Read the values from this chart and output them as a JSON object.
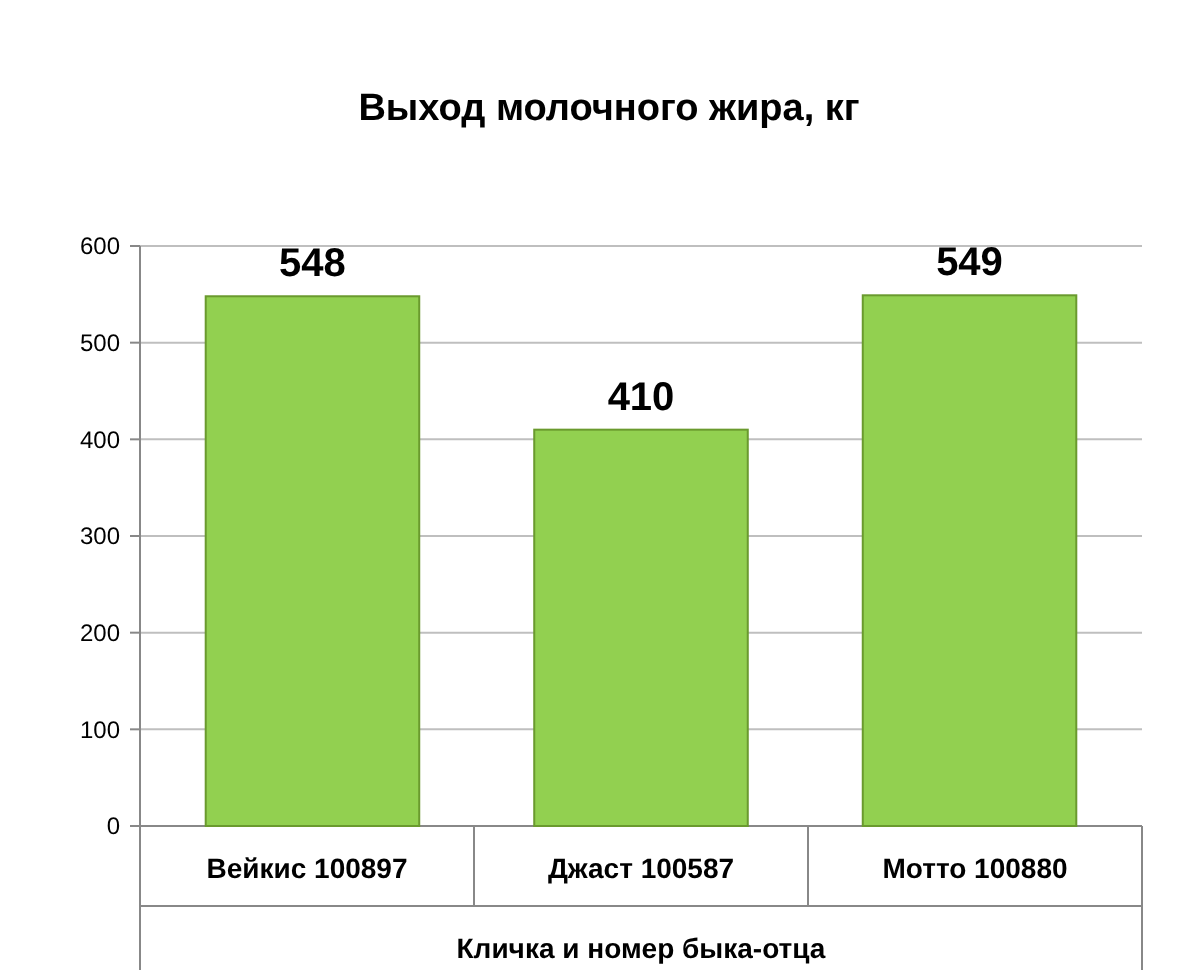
{
  "chart_data": {
    "type": "bar",
    "title": "Выход молочного жира, кг",
    "xlabel": "Кличка и номер быка-отца",
    "categories": [
      "Вейкис 100897",
      "Джаст 100587",
      "Мотто 100880"
    ],
    "values": [
      548,
      410,
      549
    ],
    "color": "#92d050",
    "ylim": [
      0,
      600
    ],
    "yticks": [
      0,
      100,
      200,
      300,
      400,
      500,
      600
    ],
    "grid": "y",
    "data_labels": true
  }
}
